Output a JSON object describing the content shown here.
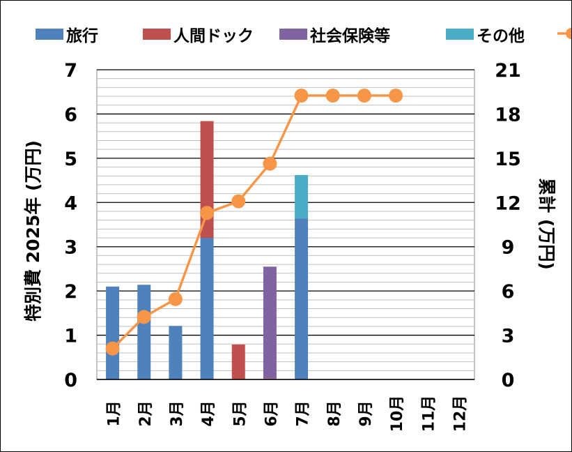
{
  "chart_data": {
    "type": "bar",
    "stacked": true,
    "categories": [
      "1月",
      "2月",
      "3月",
      "4月",
      "5月",
      "6月",
      "7月",
      "8月",
      "9月",
      "10月",
      "11月",
      "12月"
    ],
    "series": [
      {
        "name": "旅行",
        "color": "#4F81BD",
        "values": [
          2.1,
          2.14,
          1.21,
          3.2,
          0,
          0,
          3.64,
          null,
          null,
          null,
          null,
          null
        ]
      },
      {
        "name": "人間ドック",
        "color": "#C0504D",
        "values": [
          0,
          0,
          0,
          2.64,
          0.79,
          0.02,
          0,
          null,
          null,
          null,
          null,
          null
        ]
      },
      {
        "name": "社会保険等",
        "color": "#8064A2",
        "values": [
          0,
          0,
          0,
          0,
          0,
          2.53,
          0,
          null,
          null,
          null,
          null,
          null
        ]
      },
      {
        "name": "その他",
        "color": "#4BACC6",
        "values": [
          0,
          0,
          0,
          0,
          0,
          0,
          0.98,
          null,
          null,
          null,
          null,
          null
        ]
      }
    ],
    "line_series": {
      "name": "累計",
      "color": "#F79646",
      "axis": "right",
      "values": [
        2.1,
        4.24,
        5.45,
        11.29,
        12.08,
        14.63,
        19.25,
        19.25,
        19.25,
        19.25,
        null,
        null
      ]
    },
    "ylabel": "特別費 2025年 (万円)",
    "y2label": "累計 (万円)",
    "ylim": [
      0,
      7
    ],
    "y2lim": [
      0,
      21
    ],
    "yticks": [
      "0",
      "1",
      "2",
      "3",
      "4",
      "5",
      "6",
      "7"
    ],
    "y2ticks": [
      "0",
      "3",
      "6",
      "9",
      "12",
      "15",
      "18",
      "21"
    ],
    "grid": true,
    "legend": "top"
  }
}
